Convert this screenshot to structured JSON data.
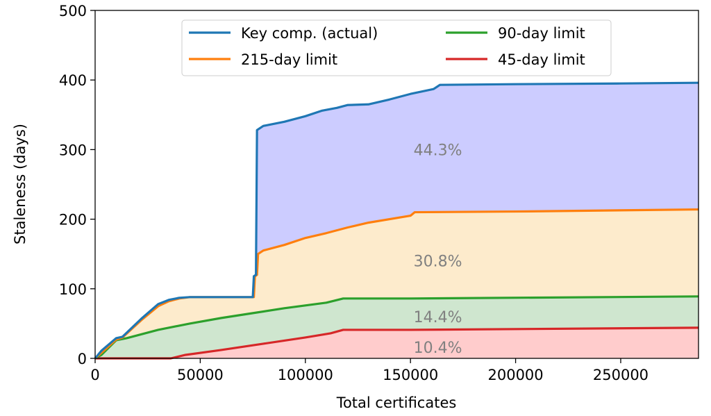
{
  "chart_data": {
    "type": "area",
    "xlabel": "Total certificates",
    "ylabel": "Staleness (days)",
    "xlim": [
      0,
      287000
    ],
    "ylim": [
      0,
      500
    ],
    "xticks": [
      0,
      50000,
      100000,
      150000,
      200000,
      250000
    ],
    "xtick_labels": [
      "0",
      "50000",
      "100000",
      "150000",
      "200000",
      "250000"
    ],
    "yticks": [
      0,
      100,
      200,
      300,
      400,
      500
    ],
    "ytick_labels": [
      "0",
      "100",
      "200",
      "300",
      "400",
      "500"
    ],
    "legend_placement": "top-center",
    "series": [
      {
        "name": "Key comp. (actual)",
        "color": "#1f77b4",
        "fill": "#ccccff",
        "x": [
          0,
          3000,
          10000,
          13000,
          22000,
          30000,
          35000,
          40000,
          45000,
          75000,
          75500,
          76500,
          77000,
          80000,
          90000,
          100000,
          108000,
          115000,
          120000,
          130000,
          140000,
          150000,
          161000,
          164000,
          200000,
          250000,
          287000
        ],
        "y": [
          0,
          11,
          29,
          31,
          57,
          78,
          84,
          87,
          88,
          88,
          118,
          120,
          328,
          334,
          340,
          348,
          356,
          360,
          364,
          365,
          372,
          380,
          387,
          393,
          394,
          395,
          396
        ]
      },
      {
        "name": "215-day limit",
        "color": "#ff7f0e",
        "fill": "#fdebcc",
        "x": [
          0,
          3000,
          10000,
          13000,
          22000,
          30000,
          35000,
          40000,
          45000,
          75500,
          76000,
          77000,
          77500,
          80000,
          90000,
          100000,
          110000,
          120000,
          130000,
          150000,
          152000,
          200000,
          287000
        ],
        "y": [
          0,
          8,
          27,
          30,
          55,
          75,
          82,
          86,
          88,
          88,
          118,
          120,
          150,
          155,
          163,
          173,
          180,
          188,
          195,
          205,
          210,
          211,
          214
        ]
      },
      {
        "name": "90-day limit",
        "color": "#2ca02c",
        "fill": "#cfe6cf",
        "x": [
          0,
          3000,
          10000,
          15000,
          20000,
          30000,
          45000,
          60000,
          75000,
          90000,
          110000,
          118000,
          150000,
          287000
        ],
        "y": [
          0,
          5,
          26,
          29,
          33,
          41,
          50,
          58,
          65,
          72,
          80,
          86,
          86,
          89
        ]
      },
      {
        "name": "45-day limit",
        "color": "#d62728",
        "fill": "#ffcccc",
        "x": [
          0,
          36000,
          43000,
          60000,
          80000,
          100000,
          112000,
          118000,
          150000,
          287000
        ],
        "y": [
          0,
          0,
          5,
          12,
          21,
          30,
          36,
          41,
          41,
          44
        ]
      }
    ],
    "annotations": [
      {
        "text": "44.3%",
        "x": 163000,
        "y": 300
      },
      {
        "text": "30.8%",
        "x": 163000,
        "y": 140
      },
      {
        "text": "14.4%",
        "x": 163000,
        "y": 60
      },
      {
        "text": "10.4%",
        "x": 163000,
        "y": 16
      }
    ]
  }
}
